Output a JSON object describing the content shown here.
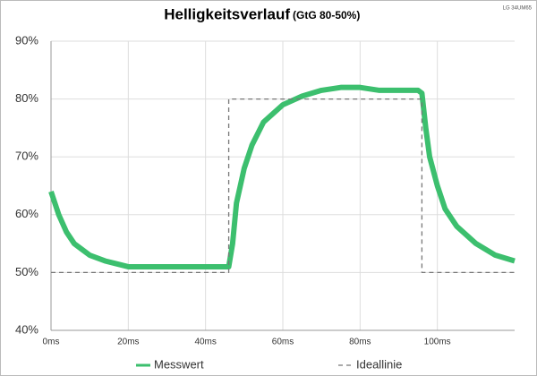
{
  "chart_data": {
    "type": "line",
    "title": "Helligkeitsverlauf",
    "subtitle": "(GtG 80-50%)",
    "annotation": "LG 34UM65",
    "series": [
      {
        "name": "Messwert",
        "color": "#3cbf6e",
        "dash": false,
        "x": [
          0,
          2,
          4,
          6,
          8,
          10,
          14,
          20,
          30,
          40,
          46,
          47,
          48,
          50,
          52,
          55,
          60,
          65,
          70,
          75,
          80,
          85,
          90,
          95,
          96,
          97,
          98,
          100,
          102,
          105,
          110,
          115,
          120
        ],
        "values": [
          64,
          60,
          57,
          55,
          54,
          53,
          52,
          51,
          51,
          51,
          51,
          55,
          62,
          68,
          72,
          76,
          79,
          80.5,
          81.5,
          82,
          82,
          81.5,
          81.5,
          81.5,
          81,
          75,
          70,
          65,
          61,
          58,
          55,
          53,
          52
        ]
      },
      {
        "name": "Ideallinie",
        "color": "#777777",
        "dash": true,
        "x": [
          0,
          46,
          46,
          96,
          96,
          120
        ],
        "values": [
          50,
          50,
          80,
          80,
          50,
          50
        ]
      }
    ],
    "xlim": [
      0,
      120
    ],
    "xticks": [
      {
        "value": 0,
        "label": "0ms"
      },
      {
        "value": 20,
        "label": "20ms"
      },
      {
        "value": 40,
        "label": "40ms"
      },
      {
        "value": 60,
        "label": "60ms"
      },
      {
        "value": 80,
        "label": "80ms"
      },
      {
        "value": 100,
        "label": "100ms"
      }
    ],
    "ylim": [
      40,
      90
    ],
    "yticks": [
      {
        "value": 40,
        "label": "40%"
      },
      {
        "value": 50,
        "label": "50%"
      },
      {
        "value": 60,
        "label": "60%"
      },
      {
        "value": 70,
        "label": "70%"
      },
      {
        "value": 80,
        "label": "80%"
      },
      {
        "value": 90,
        "label": "90%"
      }
    ],
    "grid": true
  }
}
